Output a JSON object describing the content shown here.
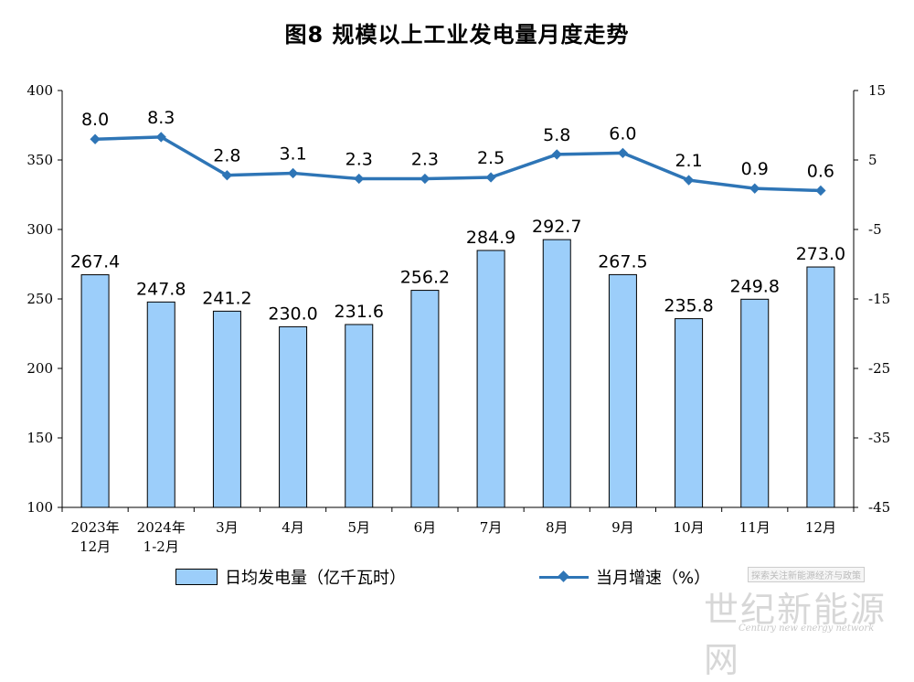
{
  "chart_data": {
    "type": "bar",
    "title": "图8  规模以上工业发电量月度走势",
    "categories": [
      [
        "2023年",
        "12月"
      ],
      [
        "2024年",
        "1-2月"
      ],
      [
        "3月"
      ],
      [
        "4月"
      ],
      [
        "5月"
      ],
      [
        "6月"
      ],
      [
        "7月"
      ],
      [
        "8月"
      ],
      [
        "9月"
      ],
      [
        "10月"
      ],
      [
        "11月"
      ],
      [
        "12月"
      ]
    ],
    "series": [
      {
        "name": "日均发电量（亿千瓦时）",
        "type": "bar",
        "axis": "left",
        "values": [
          267.4,
          247.8,
          241.2,
          230.0,
          231.6,
          256.2,
          284.9,
          292.7,
          267.5,
          235.8,
          249.8,
          273.0
        ],
        "labels": [
          "267.4",
          "247.8",
          "241.2",
          "230.0",
          "231.6",
          "256.2",
          "284.9",
          "292.7",
          "267.5",
          "235.8",
          "249.8",
          "273.0"
        ],
        "color": "#9ccefa"
      },
      {
        "name": "当月增速（%）",
        "type": "line",
        "axis": "right",
        "values": [
          8.0,
          8.3,
          2.8,
          3.1,
          2.3,
          2.3,
          2.5,
          5.8,
          6.0,
          2.1,
          0.9,
          0.6
        ],
        "labels": [
          "8.0",
          "8.3",
          "2.8",
          "3.1",
          "2.3",
          "2.3",
          "2.5",
          "5.8",
          "6.0",
          "2.1",
          "0.9",
          "0.6"
        ],
        "color": "#2e75b6"
      }
    ],
    "y_left": {
      "min": 100,
      "max": 400,
      "ticks": [
        100,
        150,
        200,
        250,
        300,
        350,
        400
      ]
    },
    "y_right": {
      "min": -45,
      "max": 15,
      "ticks": [
        -45,
        -35,
        -25,
        -15,
        -5,
        5,
        15
      ]
    },
    "grid": false,
    "legend_position": "bottom"
  },
  "watermark": {
    "top": "探索关注新能源经济与政策",
    "main": "世纪新能源网",
    "sub": "Century new energy network"
  }
}
